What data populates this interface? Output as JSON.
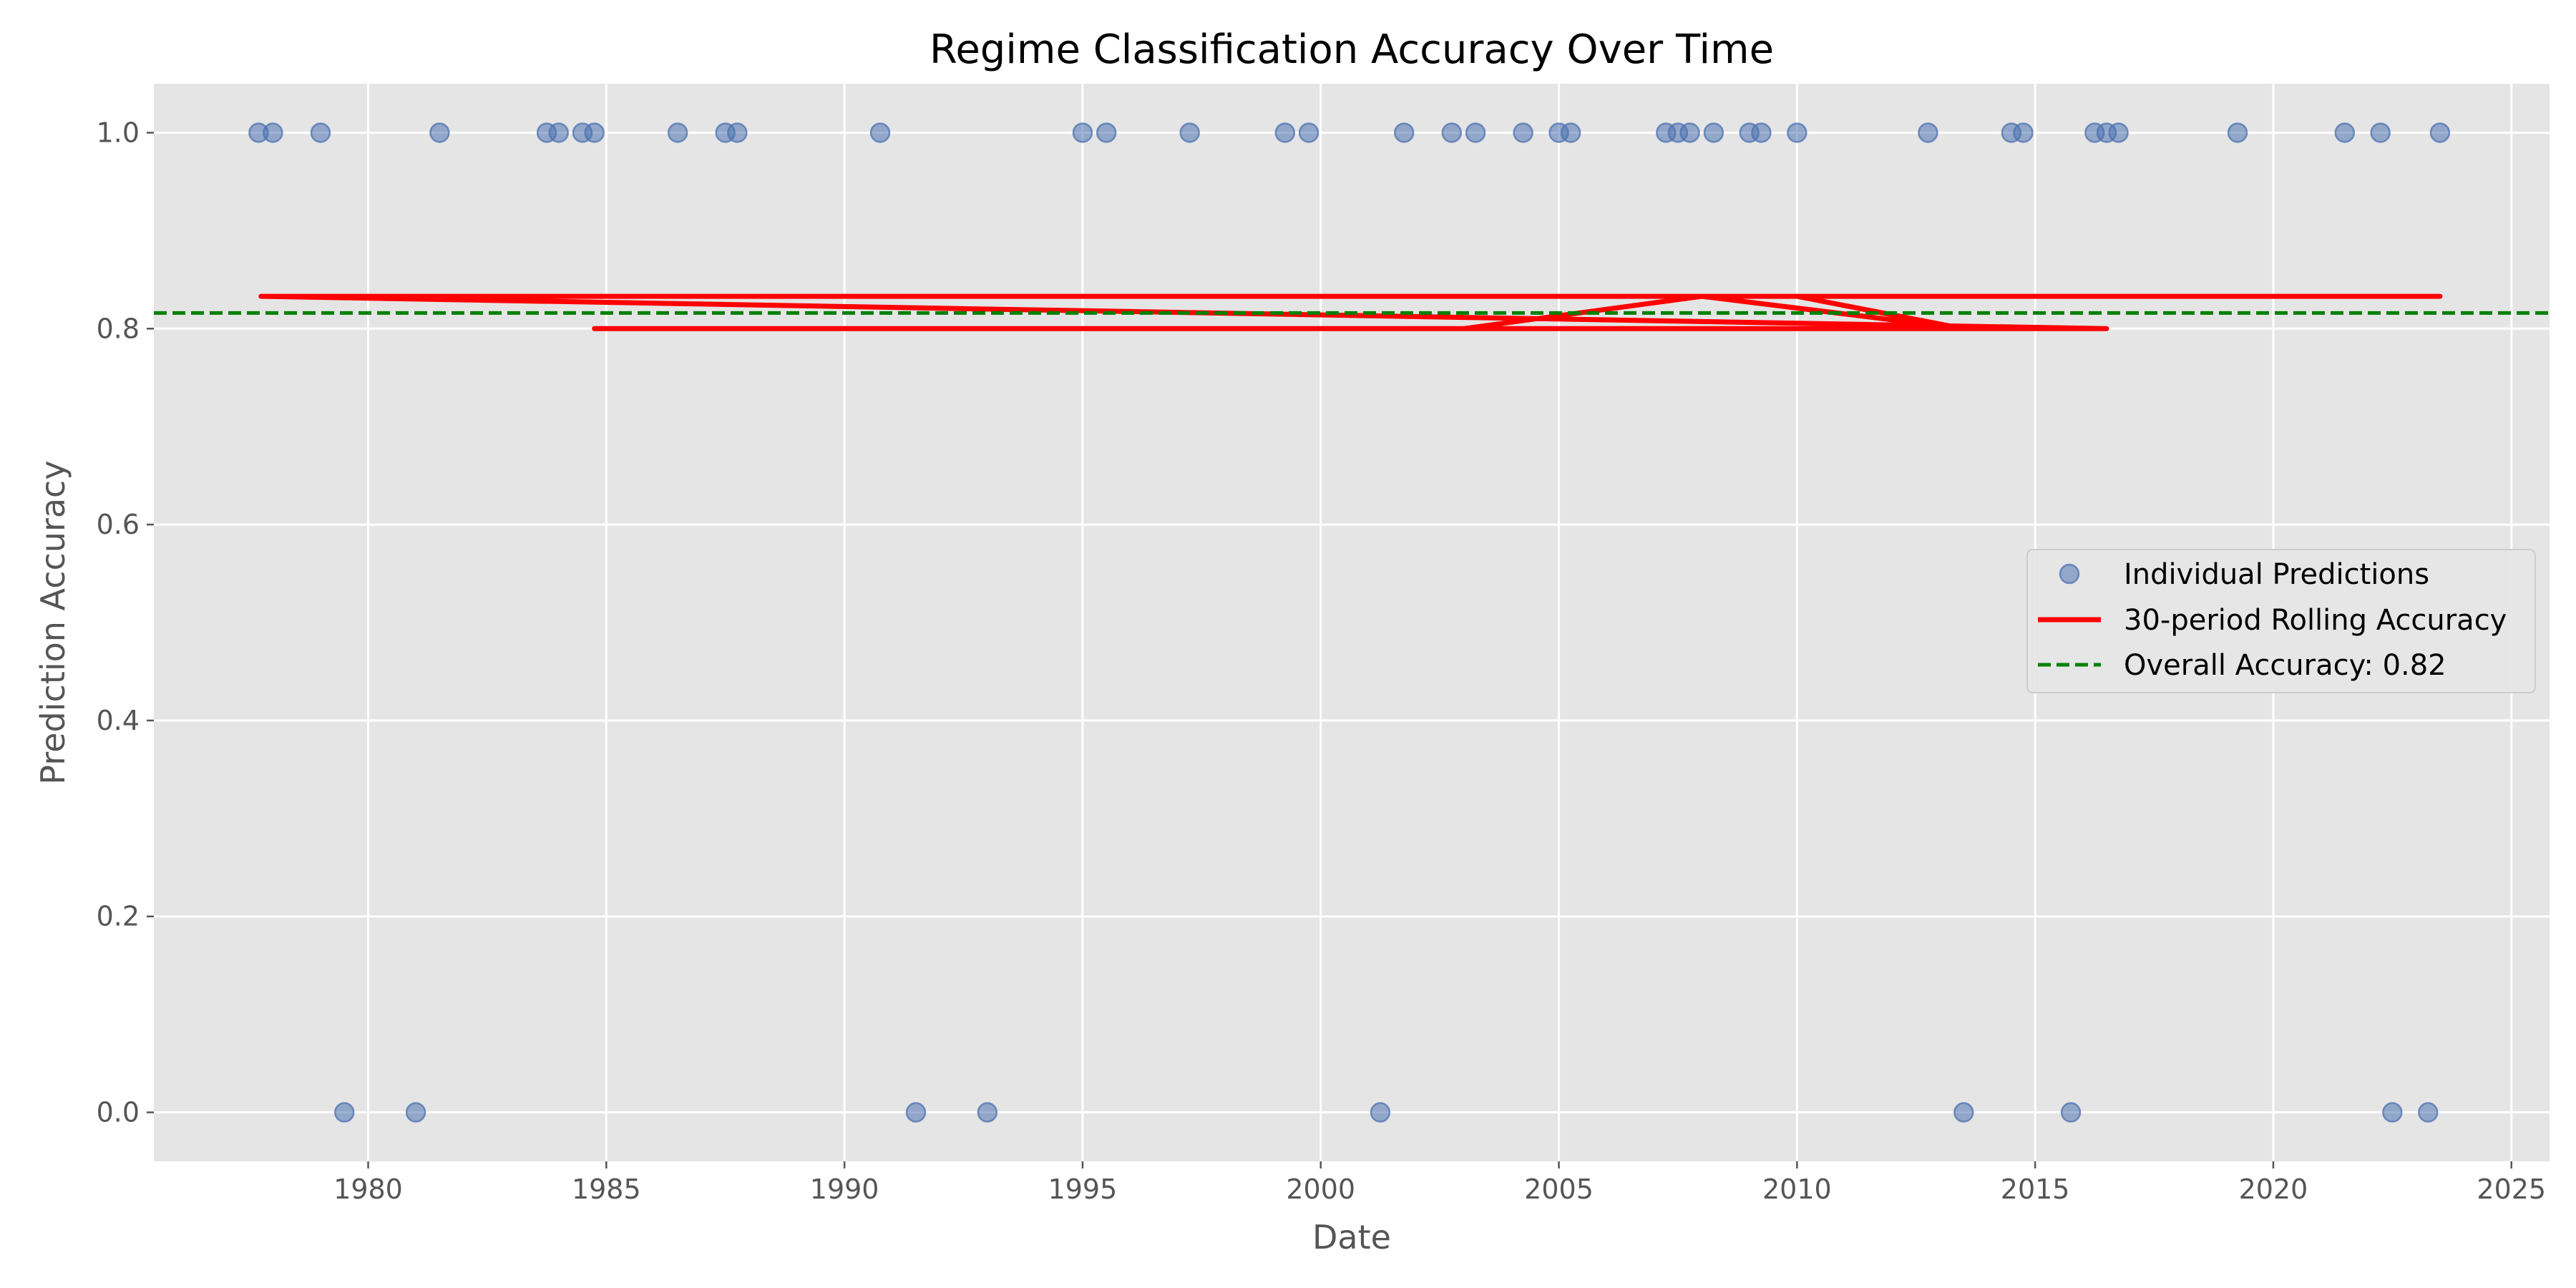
{
  "chart_data": {
    "type": "scatter",
    "title": "Regime Classification Accuracy Over Time",
    "xlabel": "Date",
    "ylabel": "Prediction Accuracy",
    "xlim": [
      1975.5,
      2025.8
    ],
    "ylim": [
      -0.05,
      1.05
    ],
    "xticks": [
      1980,
      1985,
      1990,
      1995,
      2000,
      2005,
      2010,
      2015,
      2020,
      2025
    ],
    "xtick_labels": [
      "1980",
      "1985",
      "1990",
      "1995",
      "2000",
      "2005",
      "2010",
      "2015",
      "2020",
      "2025"
    ],
    "yticks": [
      0.0,
      0.2,
      0.4,
      0.6,
      0.8,
      1.0
    ],
    "ytick_labels": [
      "0.0",
      "0.2",
      "0.4",
      "0.6",
      "0.8",
      "1.0"
    ],
    "grid": true,
    "legend_position": "center-right",
    "series": [
      {
        "name": "Individual Predictions",
        "kind": "scatter",
        "color": "#4c72b0",
        "x": [
          1977.7,
          1978.0,
          1979.0,
          1979.5,
          1981.0,
          1981.5,
          1983.75,
          1984.0,
          1984.5,
          1984.75,
          1986.5,
          1987.5,
          1987.75,
          1990.75,
          1991.5,
          1993.0,
          1995.0,
          1995.5,
          1997.25,
          1999.25,
          1999.75,
          2001.25,
          2001.75,
          2002.75,
          2003.25,
          2004.25,
          2005.0,
          2005.25,
          2007.25,
          2007.5,
          2007.75,
          2008.25,
          2009.0,
          2009.25,
          2010.0,
          2012.75,
          2013.5,
          2014.5,
          2014.75,
          2015.75,
          2016.25,
          2016.5,
          2016.75,
          2019.25,
          2021.5,
          2022.25,
          2022.5,
          2023.25,
          2023.5
        ],
        "y": [
          1,
          1,
          1,
          0,
          0,
          1,
          1,
          1,
          1,
          1,
          1,
          1,
          1,
          1,
          0,
          0,
          1,
          1,
          1,
          1,
          1,
          0,
          1,
          1,
          1,
          1,
          1,
          1,
          1,
          1,
          1,
          1,
          1,
          1,
          1,
          1,
          0,
          1,
          1,
          0,
          1,
          1,
          1,
          1,
          1,
          1,
          0,
          0,
          1
        ]
      },
      {
        "name": "30-period Rolling Accuracy",
        "kind": "line",
        "color": "#ff0000",
        "x": [
          1977.75,
          2023.5,
          2008.0,
          1977.75,
          2016.5,
          1984.75,
          2016.5,
          1984.75,
          2003.0,
          2008.0,
          2013.5,
          2010.0,
          1977.75
        ],
        "y": [
          0.833,
          0.833,
          0.833,
          0.833,
          0.8,
          0.8,
          0.8,
          0.8,
          0.8,
          0.833,
          0.8,
          0.833,
          0.833
        ]
      },
      {
        "name": "Overall Accuracy: 0.82",
        "kind": "hline",
        "color": "#008000",
        "y": 0.816
      }
    ]
  }
}
